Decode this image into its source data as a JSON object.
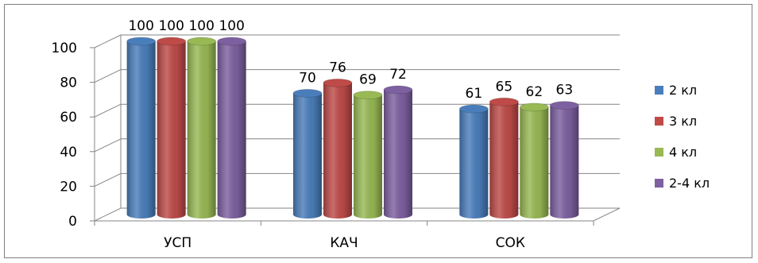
{
  "chart_data": {
    "type": "bar",
    "style": "3d-cylinder",
    "categories": [
      "УСП",
      "КАЧ",
      "СОК"
    ],
    "series": [
      {
        "name": "2 кл",
        "color": "#4a7ebb",
        "values": [
          100,
          70,
          61
        ]
      },
      {
        "name": "3 кл",
        "color": "#be4b48",
        "values": [
          100,
          76,
          65
        ]
      },
      {
        "name": "4 кл",
        "color": "#98b954",
        "values": [
          100,
          69,
          62
        ]
      },
      {
        "name": "2-4 кл",
        "color": "#7d60a0",
        "values": [
          100,
          72,
          63
        ]
      }
    ],
    "yticks": [
      0,
      20,
      40,
      60,
      80,
      100
    ],
    "ylim": [
      0,
      100
    ],
    "grid": true,
    "legend": "right",
    "data_labels": true
  }
}
